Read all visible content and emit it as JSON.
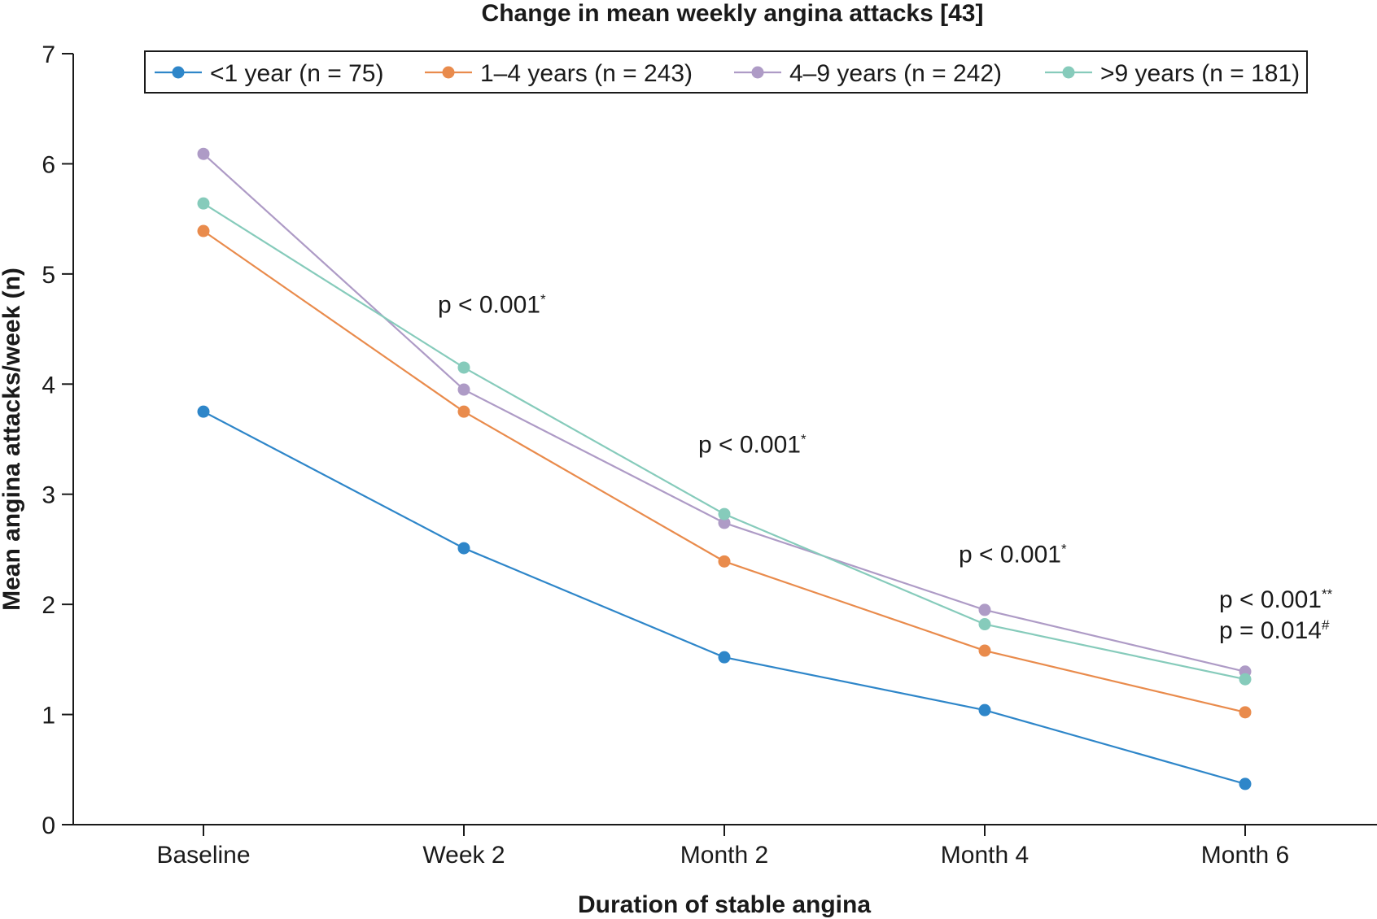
{
  "chart_data": {
    "type": "line",
    "title": "Change in mean weekly angina attacks [43]",
    "xlabel": "Duration of stable angina",
    "ylabel": "Mean angina attacks/week (n)",
    "categories": [
      "Baseline",
      "Week 2",
      "Month 2",
      "Month 4",
      "Month 6"
    ],
    "ylim": [
      0,
      7
    ],
    "yticks": [
      0,
      1,
      2,
      3,
      4,
      5,
      6,
      7
    ],
    "grid": false,
    "legend_position": "top",
    "series": [
      {
        "name": "<1 year (n = 75)",
        "color": "#2e86c9",
        "values": [
          3.75,
          2.51,
          1.52,
          1.04,
          0.37
        ]
      },
      {
        "name": "1–4 years (n = 243)",
        "color": "#e98b4c",
        "values": [
          5.39,
          3.75,
          2.39,
          1.58,
          1.02
        ]
      },
      {
        "name": "4–9 years (n = 242)",
        "color": "#ae9bc6",
        "values": [
          6.09,
          3.95,
          2.74,
          1.95,
          1.39
        ]
      },
      {
        "name": ">9 years (n = 181)",
        "color": "#86cbbb",
        "values": [
          5.64,
          4.15,
          2.82,
          1.82,
          1.32
        ]
      }
    ],
    "annotations": [
      {
        "category": "Week 2",
        "y": 4.65,
        "text": "p < 0.001",
        "sup": "*"
      },
      {
        "category": "Month 2",
        "y": 3.38,
        "text": "p < 0.001",
        "sup": "*"
      },
      {
        "category": "Month 4",
        "y": 2.38,
        "text": "p < 0.001",
        "sup": "*"
      },
      {
        "category": "Month 6",
        "y": 1.97,
        "text": "p < 0.001",
        "sup": "**"
      },
      {
        "category": "Month 6",
        "y": 1.69,
        "text": "p = 0.014",
        "sup": "#"
      }
    ]
  }
}
